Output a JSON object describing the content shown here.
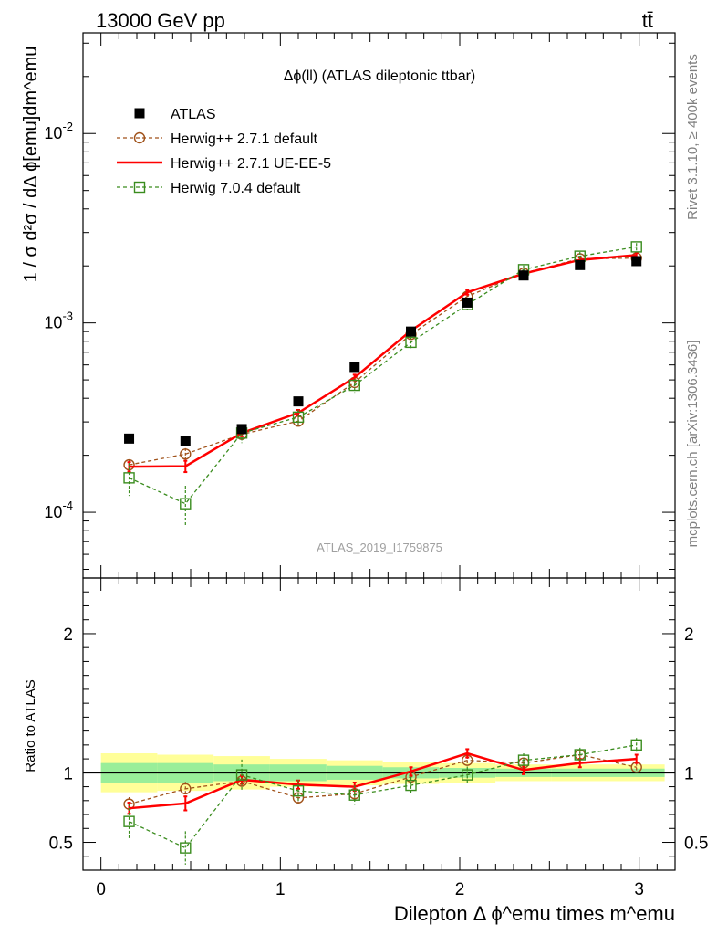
{
  "header": {
    "left": "13000 GeV pp",
    "right": "tt̄"
  },
  "side": {
    "rivet": "Rivet 3.1.10, ≥ 400k events",
    "mcplots": "mcplots.cern.ch [arXiv:1306.3436]"
  },
  "chart_data": [
    {
      "type": "scatter",
      "panel": "main",
      "title": "Δϕ(ll) (ATLAS dileptonic ttbar)",
      "watermark": "ATLAS_2019_I1759875",
      "ylabel": "1 / σ  d²σ / dΔ ϕ[emu]dm^emu",
      "y_scale": "log",
      "ylim": [
        4.5e-05,
        0.034
      ],
      "xlim": [
        -0.1,
        3.2
      ],
      "y_ticks": [
        "10^-4",
        "10^-3",
        "10^-2"
      ],
      "legend_position": "top-left",
      "x": [
        0.157,
        0.471,
        0.785,
        1.1,
        1.414,
        1.728,
        2.042,
        2.356,
        2.67,
        2.985
      ],
      "series": [
        {
          "name": "ATLAS",
          "color": "#000000",
          "marker": "filled-square",
          "values": [
            0.000245,
            0.000238,
            0.000275,
            0.000385,
            0.000585,
            0.0009,
            0.00128,
            0.00178,
            0.00202,
            0.00212
          ]
        },
        {
          "name": "Herwig++ 2.7.1 default",
          "color": "#a0521a",
          "marker": "open-circle",
          "style": "dashed",
          "values": [
            0.000178,
            0.000203,
            0.000258,
            0.000303,
            0.000485,
            0.00087,
            0.00138,
            0.00183,
            0.00218,
            0.0022
          ],
          "errors": [
            1.2e-05,
            1.5e-05,
            1.2e-05,
            1.5e-05,
            2e-05,
            3e-05,
            4e-05,
            5e-05,
            6e-05,
            6e-05
          ]
        },
        {
          "name": "Herwig++ 2.7.1 UE-EE-5",
          "color": "#ff0000",
          "marker": "none",
          "style": "solid",
          "values": [
            0.000174,
            0.000175,
            0.000262,
            0.000335,
            0.000515,
            0.00091,
            0.00145,
            0.00182,
            0.00215,
            0.00228
          ],
          "errors": [
            1e-05,
            1.2e-05,
            1e-05,
            1.2e-05,
            1.8e-05,
            3e-05,
            4e-05,
            5e-05,
            6e-05,
            6e-05
          ]
        },
        {
          "name": "Herwig 7.0.4 default",
          "color": "#3a8c1e",
          "marker": "open-square",
          "style": "dashed",
          "values": [
            0.000152,
            0.000111,
            0.000262,
            0.000318,
            0.000468,
            0.00079,
            0.00125,
            0.00191,
            0.00225,
            0.00252
          ],
          "errors": [
            3e-05,
            2.7e-05,
            3e-05,
            3e-05,
            4e-05,
            6e-05,
            8e-05,
            0.0001,
            0.00012,
            0.00012
          ]
        }
      ]
    },
    {
      "type": "line",
      "panel": "ratio",
      "ylabel": "Ratio to ATLAS",
      "xlabel": "Dilepton Δ ϕ^emu times m^emu",
      "ylim": [
        0.3,
        2.4
      ],
      "xlim": [
        -0.1,
        3.2
      ],
      "x_ticks": [
        "0",
        "1",
        "2",
        "3"
      ],
      "y_ticks": [
        "0.5",
        "1",
        "2"
      ],
      "x": [
        0.157,
        0.471,
        0.785,
        1.1,
        1.414,
        1.728,
        2.042,
        2.356,
        2.67,
        2.985
      ],
      "bins": [
        0,
        0.314,
        0.628,
        0.942,
        1.257,
        1.571,
        1.885,
        2.199,
        2.513,
        2.827,
        3.142
      ],
      "band_green": [
        0.07,
        0.07,
        0.06,
        0.06,
        0.05,
        0.04,
        0.035,
        0.03,
        0.03,
        0.03
      ],
      "band_yellow": [
        0.14,
        0.13,
        0.12,
        0.1,
        0.09,
        0.08,
        0.07,
        0.06,
        0.06,
        0.06
      ],
      "series": [
        {
          "name": "Herwig++ 2.7.1 default",
          "color": "#a0521a",
          "marker": "open-circle",
          "style": "dashed",
          "values": [
            0.775,
            0.885,
            0.94,
            0.82,
            0.85,
            0.97,
            1.09,
            1.07,
            1.13,
            1.04
          ],
          "errors": [
            0.05,
            0.05,
            0.04,
            0.04,
            0.04,
            0.03,
            0.03,
            0.03,
            0.03,
            0.03
          ]
        },
        {
          "name": "Herwig++ 2.7.1 UE-EE-5",
          "color": "#ff0000",
          "marker": "none",
          "style": "solid",
          "values": [
            0.745,
            0.78,
            0.95,
            0.915,
            0.9,
            1.01,
            1.14,
            1.02,
            1.07,
            1.1
          ],
          "errors": [
            0.04,
            0.05,
            0.03,
            0.03,
            0.03,
            0.03,
            0.03,
            0.03,
            0.03,
            0.03
          ]
        },
        {
          "name": "Herwig 7.0.4 default",
          "color": "#3a8c1e",
          "marker": "open-square",
          "style": "dashed",
          "values": [
            0.65,
            0.46,
            0.985,
            0.87,
            0.84,
            0.91,
            0.985,
            1.09,
            1.13,
            1.2
          ],
          "errors": [
            0.13,
            0.12,
            0.11,
            0.08,
            0.07,
            0.06,
            0.06,
            0.05,
            0.05,
            0.05
          ]
        }
      ]
    }
  ]
}
